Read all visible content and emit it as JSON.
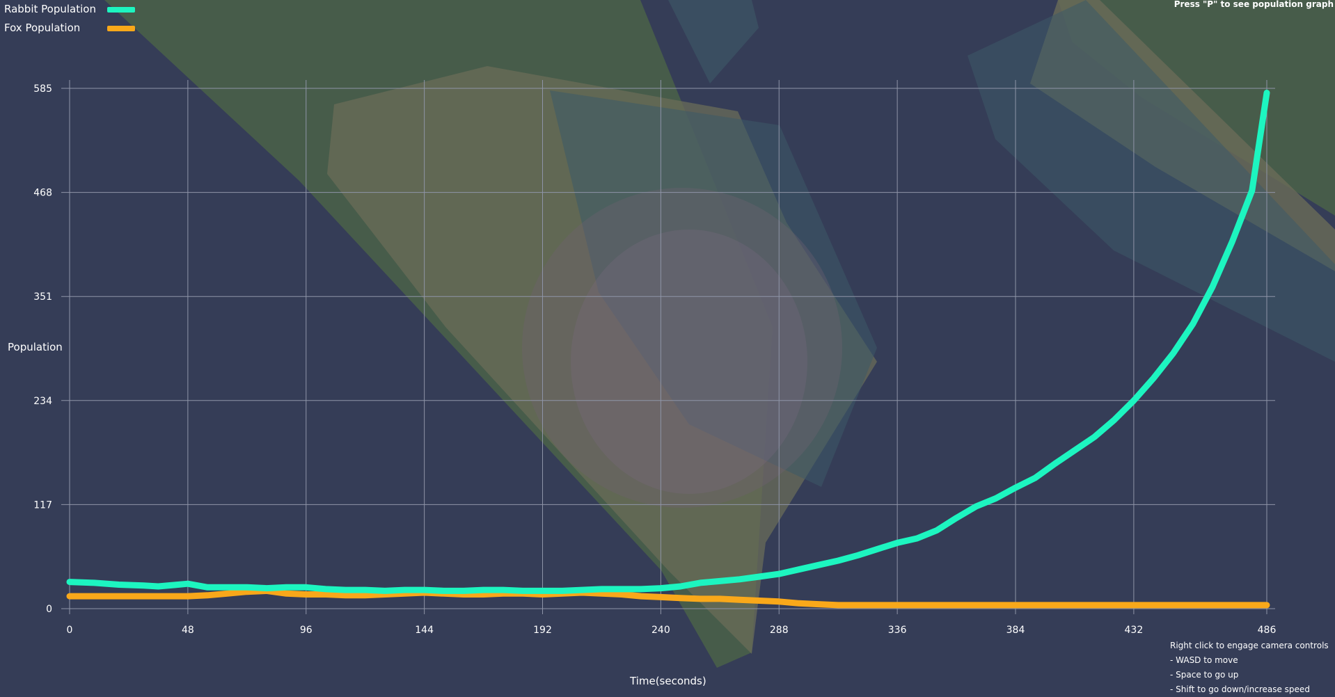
{
  "legend": {
    "rabbit_label": "Rabbit Population",
    "fox_label": "Fox Population"
  },
  "hints": {
    "top_right": "Press \"P\" to see population graph",
    "controls": [
      "Right click to engage camera controls",
      "- WASD to move",
      "- Space to go up",
      "- Shift to go down/increase speed"
    ]
  },
  "colors": {
    "background": "#353d57",
    "rabbit": "#1df5c0",
    "fox": "#f9a81a",
    "grid": "#8f95a8"
  },
  "chart_data": {
    "type": "line",
    "xlabel": "Time(seconds)",
    "ylabel": "Population",
    "x_ticks": [
      0,
      48,
      96,
      144,
      192,
      240,
      288,
      336,
      384,
      432,
      486
    ],
    "y_ticks": [
      0,
      117,
      234,
      351,
      468,
      585
    ],
    "xlim": [
      0,
      486
    ],
    "ylim": [
      0,
      585
    ],
    "grid": true,
    "legend_position": "top-left",
    "series": [
      {
        "name": "Rabbit Population",
        "color": "#1df5c0",
        "x": [
          0,
          10,
          20,
          30,
          36,
          44,
          48,
          56,
          64,
          72,
          80,
          88,
          96,
          104,
          112,
          120,
          128,
          136,
          144,
          152,
          160,
          168,
          176,
          184,
          192,
          200,
          208,
          216,
          224,
          232,
          240,
          248,
          256,
          264,
          272,
          280,
          288,
          296,
          304,
          312,
          320,
          328,
          336,
          344,
          352,
          360,
          368,
          376,
          384,
          392,
          400,
          408,
          416,
          424,
          432,
          440,
          448,
          456,
          464,
          472,
          480,
          486
        ],
        "y": [
          30,
          29,
          27,
          26,
          25,
          27,
          28,
          24,
          24,
          24,
          23,
          24,
          24,
          22,
          21,
          21,
          20,
          21,
          21,
          20,
          20,
          21,
          21,
          20,
          20,
          20,
          21,
          22,
          22,
          22,
          23,
          25,
          29,
          31,
          33,
          36,
          39,
          44,
          49,
          54,
          60,
          67,
          74,
          79,
          88,
          102,
          115,
          124,
          136,
          147,
          163,
          178,
          193,
          212,
          234,
          259,
          287,
          320,
          362,
          413,
          470,
          580
        ]
      },
      {
        "name": "Fox Population",
        "color": "#f9a81a",
        "x": [
          0,
          20,
          40,
          48,
          56,
          64,
          72,
          80,
          88,
          96,
          104,
          112,
          120,
          128,
          136,
          144,
          152,
          160,
          168,
          176,
          184,
          192,
          200,
          208,
          216,
          224,
          232,
          240,
          248,
          256,
          264,
          272,
          280,
          288,
          296,
          304,
          312,
          320,
          336,
          360,
          384,
          408,
          432,
          456,
          486
        ],
        "y": [
          14,
          14,
          14,
          14,
          15,
          17,
          19,
          20,
          17,
          16,
          16,
          15,
          15,
          16,
          17,
          18,
          17,
          16,
          16,
          17,
          17,
          16,
          17,
          18,
          17,
          16,
          14,
          13,
          12,
          11,
          11,
          10,
          9,
          8,
          6,
          5,
          4,
          4,
          4,
          4,
          4,
          4,
          4,
          4,
          4
        ]
      }
    ]
  }
}
